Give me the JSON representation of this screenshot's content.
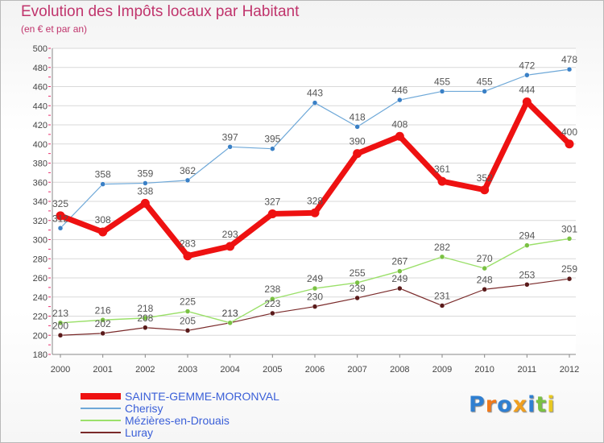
{
  "header": {
    "title": "Evolution des Impôts locaux par Habitant",
    "subtitle": "(en € et par an)"
  },
  "logo": {
    "text": "Proxiti",
    "letter_colors": [
      "#2f7fd1",
      "#f07a1c",
      "#2f7fd1",
      "#f0a020",
      "#2f7fd1",
      "#7ac143",
      "#e8c820"
    ]
  },
  "colors": {
    "axis_text": "#444444",
    "grid": "#d9d9d9",
    "accent_ticks": "#e8306f",
    "label_text": "#555555"
  },
  "chart_data": {
    "type": "line",
    "title": "Evolution des Impôts locaux par Habitant",
    "subtitle": "(en € et par an)",
    "xlabel": "",
    "ylabel": "",
    "ylim": [
      180,
      500
    ],
    "yticks": [
      180,
      200,
      220,
      240,
      260,
      280,
      300,
      320,
      340,
      360,
      380,
      400,
      420,
      440,
      460,
      480,
      500
    ],
    "grid": true,
    "legend_position": "bottom-left",
    "x": [
      "2000",
      "2001",
      "2002",
      "2003",
      "2004",
      "2005",
      "2006",
      "2007",
      "2008",
      "2009",
      "2010",
      "2011",
      "2012"
    ],
    "series": [
      {
        "name": "SAINTE-GEMME-MORONVAL",
        "values": [
          325,
          308,
          338,
          283,
          293,
          327,
          328,
          390,
          408,
          361,
          352,
          444,
          400
        ],
        "color": "#ee1111",
        "marker": "#ee1111",
        "width": 7,
        "labels": [
          "325",
          "308",
          "338",
          "283",
          "293",
          "327",
          "328",
          "390",
          "408",
          "361",
          "352",
          "444",
          "400"
        ]
      },
      {
        "name": "Cherisy",
        "values": [
          312,
          358,
          359,
          362,
          397,
          395,
          443,
          418,
          446,
          455,
          455,
          472,
          478
        ],
        "color": "#6ea8d8",
        "marker": "#3a80c6",
        "width": 1.2,
        "labels": [
          "312",
          "358",
          "359",
          "362",
          "397",
          "395",
          "443",
          "418",
          "446",
          "455",
          "455",
          "472",
          "478"
        ]
      },
      {
        "name": "Mézières-en-Drouais",
        "values": [
          213,
          216,
          218,
          225,
          213,
          238,
          249,
          255,
          267,
          282,
          270,
          294,
          301
        ],
        "color": "#9be06a",
        "marker": "#7ac143",
        "width": 1.4,
        "labels": [
          "213",
          "216",
          "218",
          "225",
          "213",
          "238",
          "249",
          "255",
          "267",
          "282",
          "270",
          "294",
          "301"
        ]
      },
      {
        "name": "Luray",
        "values": [
          200,
          202,
          208,
          205,
          213,
          223,
          230,
          239,
          249,
          231,
          248,
          253,
          259
        ],
        "color": "#7a2a2a",
        "marker": "#5a1a1a",
        "width": 1.2,
        "labels": [
          "200",
          "202",
          "208",
          "205",
          "213",
          "223",
          "230",
          "239",
          "249",
          "231",
          "248",
          "253",
          "259"
        ]
      }
    ]
  }
}
